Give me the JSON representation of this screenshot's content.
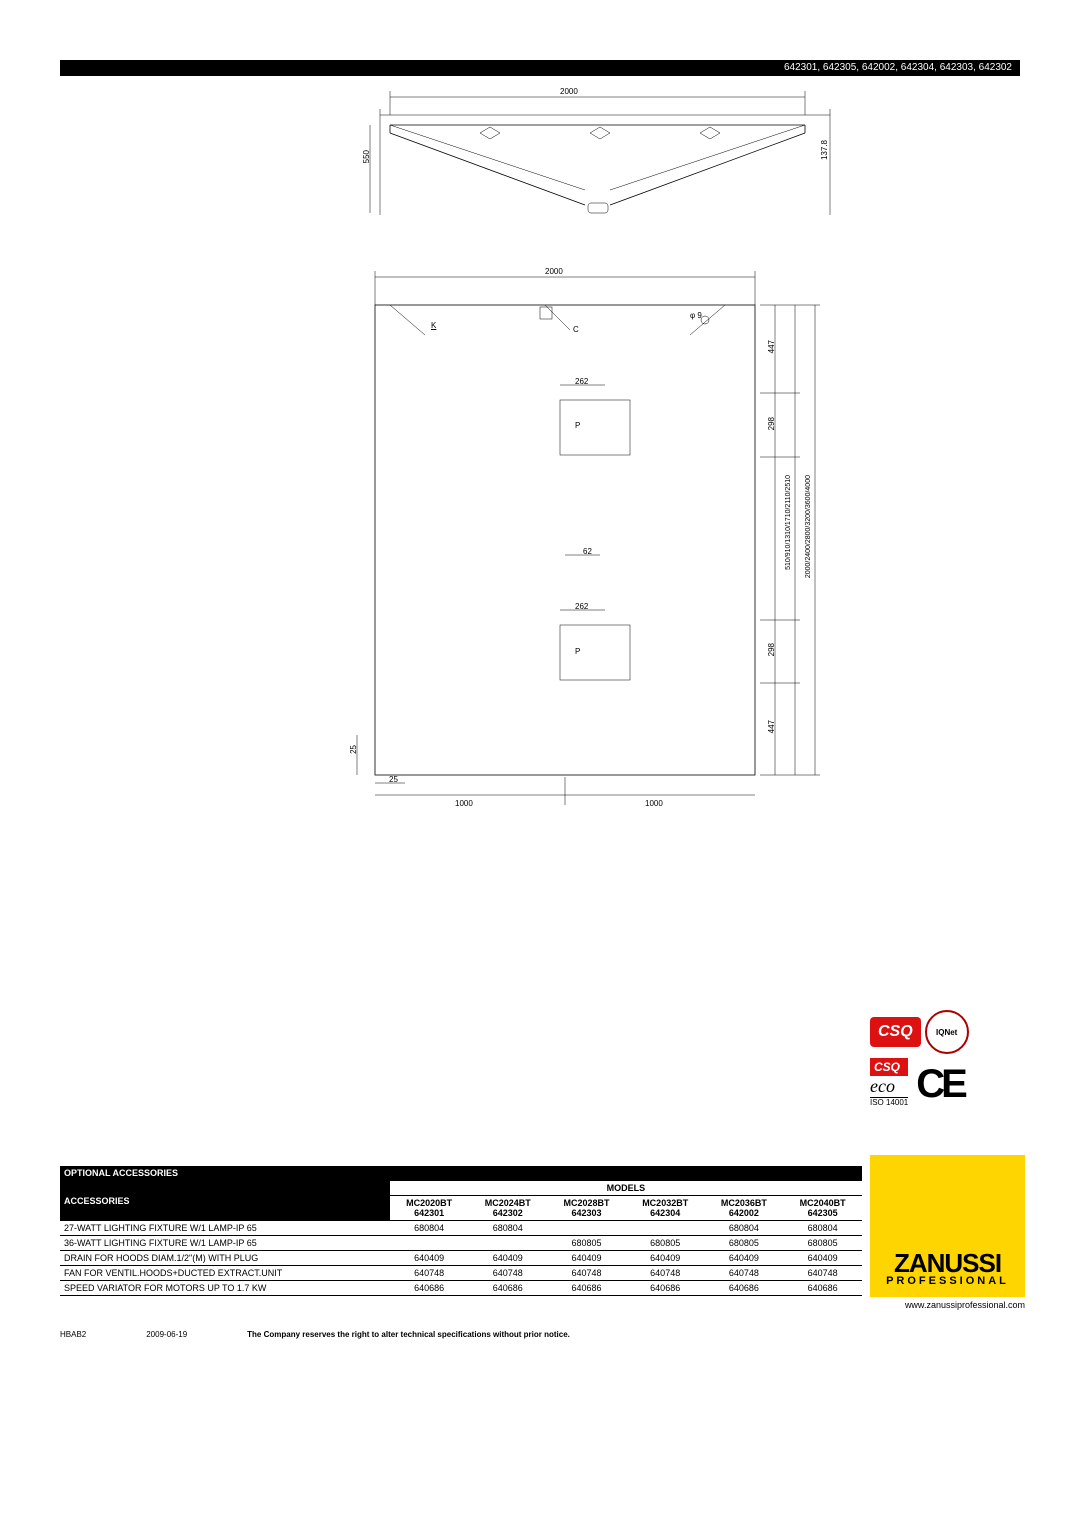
{
  "header_codes": "642301, 642305, 642002, 642304, 642303, 642302",
  "drawing_top": {
    "width_label": "2000",
    "height_left": "550",
    "height_right": "137.8"
  },
  "drawing_bot": {
    "width_label": "2000",
    "k_label": "K",
    "c_label": "C",
    "phi_label": "φ 9",
    "dim_262_a": "262",
    "p_label_a": "P",
    "dim_62": "62",
    "dim_262_b": "262",
    "p_label_b": "P",
    "right_447_a": "447",
    "right_298_a": "298",
    "right_long_inner": "510/910/1310/1710/2110/2510",
    "right_long_outer": "2000/2400/2800/3200/3600/4000",
    "right_298_b": "298",
    "right_447_b": "447",
    "left_25": "25",
    "bottom_25": "25",
    "bottom_1000_a": "1000",
    "bottom_1000_b": "1000"
  },
  "cert": {
    "csq": "CSQ",
    "iqnet": "IQNet",
    "eco": "eco",
    "iso": "ISO 14001",
    "ce": "CE"
  },
  "brand": {
    "name": "ZANUSSI",
    "sub": "PROFESSIONAL",
    "url": "www.zanussiprofessional.com"
  },
  "table": {
    "title": "OPTIONAL ACCESSORIES",
    "acc_header": "ACCESSORIES",
    "models_header": "MODELS",
    "columns": [
      {
        "model": "MC2020BT",
        "code": "642301"
      },
      {
        "model": "MC2024BT",
        "code": "642302"
      },
      {
        "model": "MC2028BT",
        "code": "642303"
      },
      {
        "model": "MC2032BT",
        "code": "642304"
      },
      {
        "model": "MC2036BT",
        "code": "642002"
      },
      {
        "model": "MC2040BT",
        "code": "642305"
      }
    ],
    "rows": [
      {
        "acc": "27-WATT LIGHTING FIXTURE W/1 LAMP-IP 65",
        "v": [
          "680804",
          "680804",
          "",
          "",
          "680804",
          "680804"
        ]
      },
      {
        "acc": "36-WATT LIGHTING FIXTURE W/1 LAMP-IP 65",
        "v": [
          "",
          "",
          "680805",
          "680805",
          "680805",
          "680805"
        ]
      },
      {
        "acc": "DRAIN FOR HOODS DIAM.1/2\"(M) WITH PLUG",
        "v": [
          "640409",
          "640409",
          "640409",
          "640409",
          "640409",
          "640409"
        ]
      },
      {
        "acc": "FAN FOR VENTIL.HOODS+DUCTED EXTRACT.UNIT",
        "v": [
          "640748",
          "640748",
          "640748",
          "640748",
          "640748",
          "640748"
        ]
      },
      {
        "acc": "SPEED VARIATOR FOR MOTORS UP TO 1.7 KW",
        "v": [
          "640686",
          "640686",
          "640686",
          "640686",
          "640686",
          "640686"
        ]
      }
    ]
  },
  "footer": {
    "code": "HBAB2",
    "date": "2009-06-19",
    "disclaimer": "The Company reserves the right to alter technical specifications without prior notice."
  }
}
